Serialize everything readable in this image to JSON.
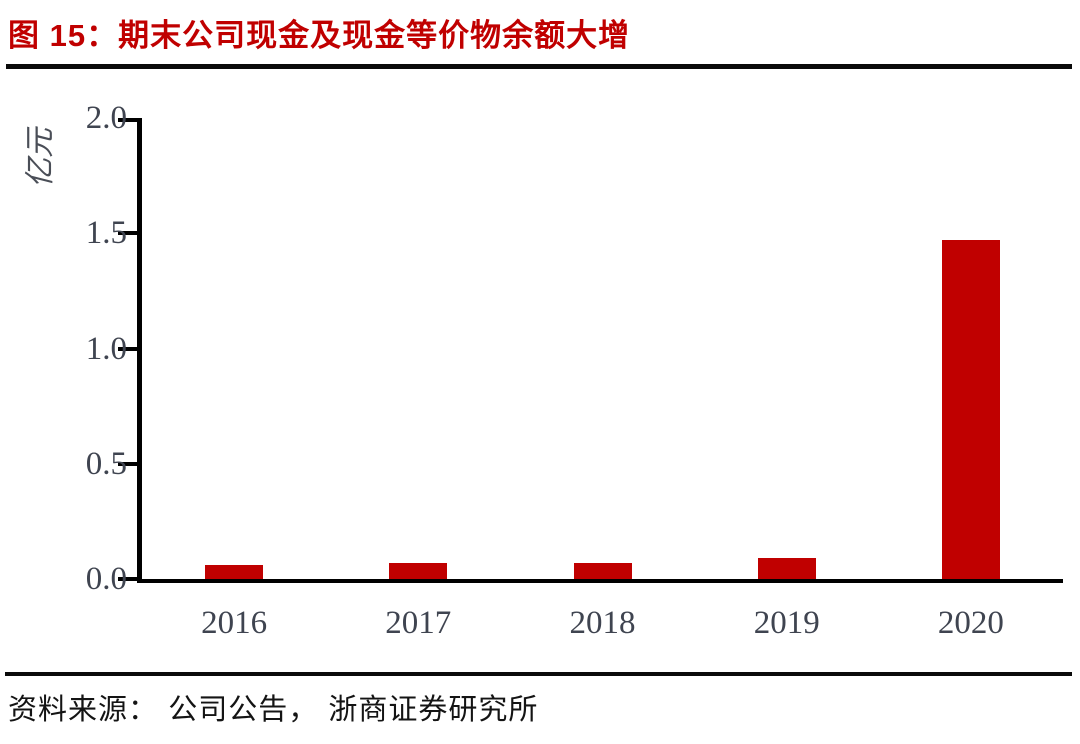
{
  "figure": {
    "title": "图 15：期末公司现金及现金等价物余额大增",
    "source_note": "资料来源： 公司公告， 浙商证券研究所"
  },
  "colors": {
    "accent_red": "#C00000",
    "axis_black": "#000000",
    "tick_text_gray": "#3F4450"
  },
  "chart_data": {
    "type": "bar",
    "title": "期末公司现金及现金等价物余额大增",
    "categories": [
      "2016",
      "2017",
      "2018",
      "2019",
      "2020"
    ],
    "values": [
      0.06,
      0.07,
      0.07,
      0.09,
      1.47
    ],
    "xlabel": "",
    "ylabel": "亿元",
    "ylim": [
      0,
      2.0
    ],
    "yticks": [
      0.0,
      0.5,
      1.0,
      1.5,
      2.0
    ],
    "ytick_labels": [
      "0.0",
      "0.5",
      "1.0",
      "1.5",
      "2.0"
    ],
    "bar_color": "#C00000",
    "grid": false,
    "legend_position": "none"
  }
}
